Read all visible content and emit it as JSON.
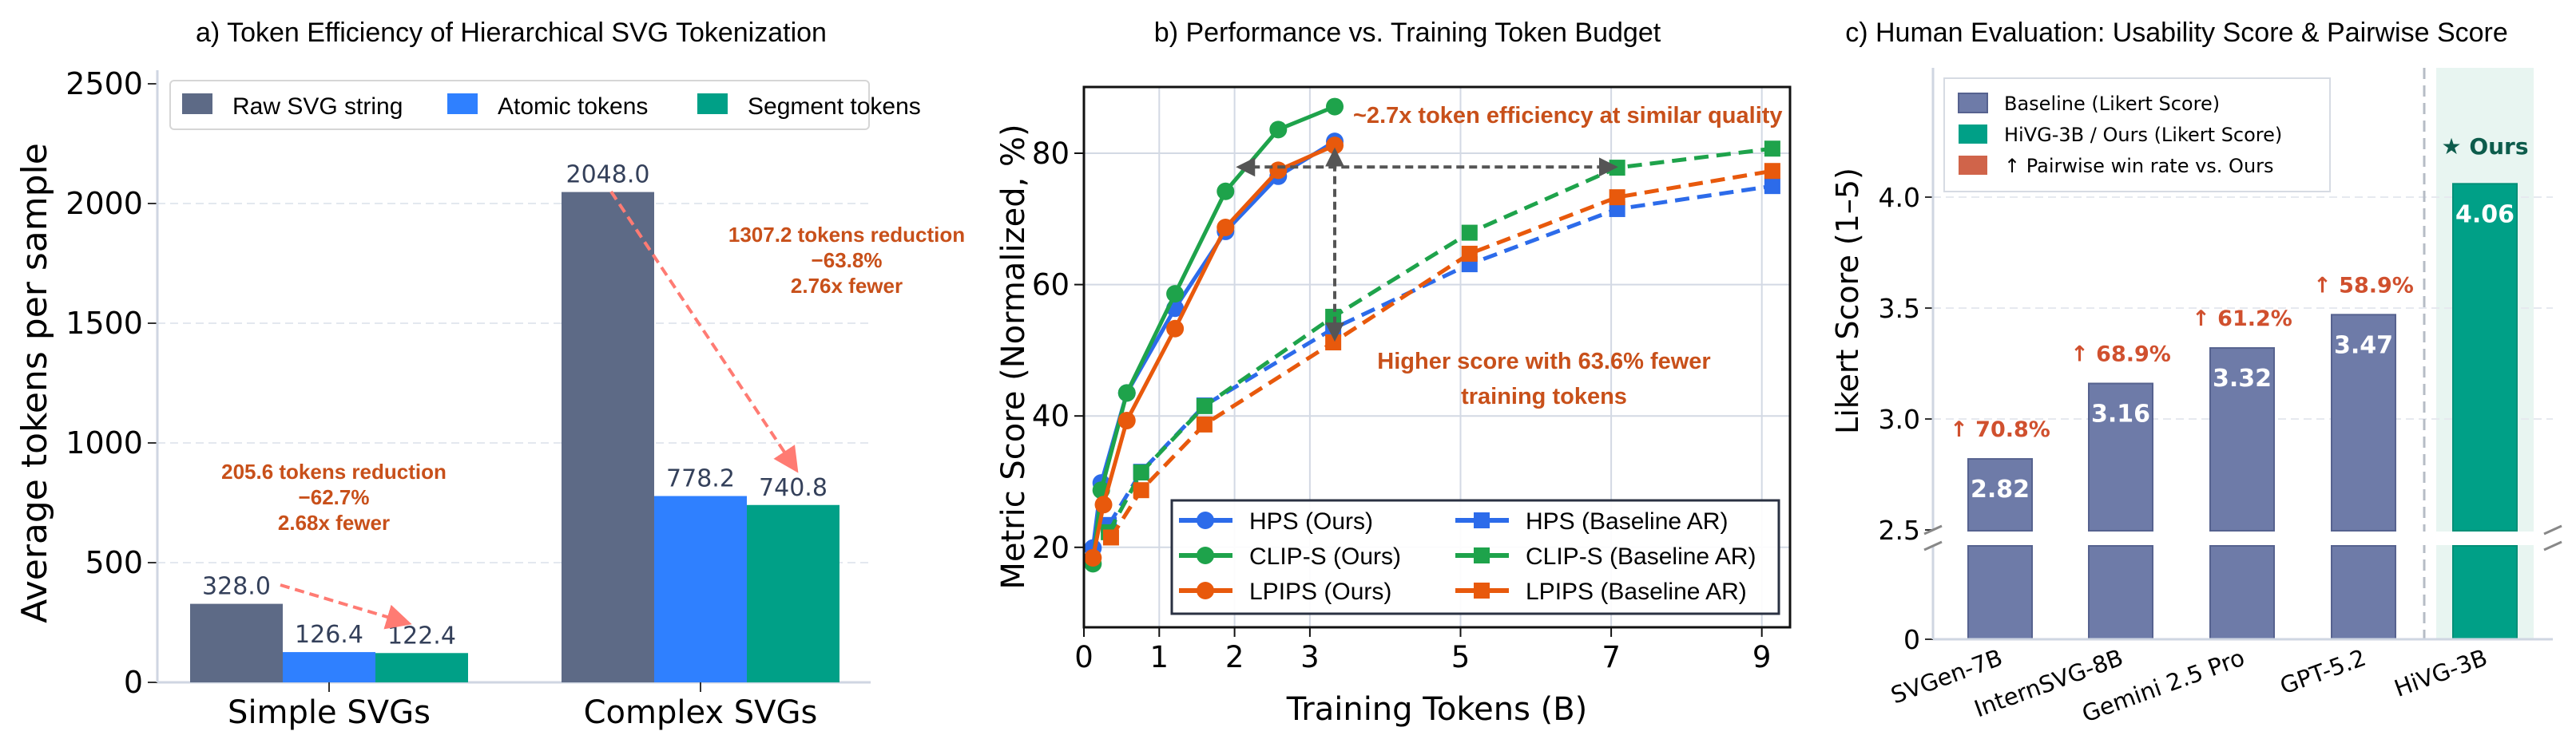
{
  "chart_data": [
    {
      "type": "bar",
      "title": "a) Token Efficiency of Hierarchical SVG Tokenization",
      "xlabel": "",
      "ylabel": "Average tokens per sample",
      "ylim": [
        0,
        2500
      ],
      "yticks": [
        "0",
        "500",
        "1000",
        "1500",
        "2000",
        "2500"
      ],
      "grid": "horizontal dashed",
      "legend_position": "top",
      "categories": [
        "Simple SVGs",
        "Complex SVGs"
      ],
      "series": [
        {
          "name": "Raw SVG string",
          "color": "#5d6a86",
          "values": [
            328.0,
            2048.0
          ],
          "labels": [
            "328.0",
            "2048.0"
          ]
        },
        {
          "name": "Atomic tokens",
          "color": "#2f80ff",
          "values": [
            126.4,
            778.2
          ],
          "labels": [
            "126.4",
            "778.2"
          ]
        },
        {
          "name": "Segment tokens",
          "color": "#00a087",
          "values": [
            122.4,
            740.8
          ],
          "labels": [
            "122.4",
            "740.8"
          ]
        }
      ],
      "annotations": [
        {
          "lines": [
            "205.6 tokens reduction",
            "−62.7%",
            "2.68x fewer"
          ],
          "color": "#c8501a"
        },
        {
          "lines": [
            "1307.2 tokens reduction",
            "−63.8%",
            "2.76x fewer"
          ],
          "color": "#c8501a"
        }
      ],
      "arrow_color": "#ff7b73"
    },
    {
      "type": "line",
      "title": "b) Performance vs. Training Token Budget",
      "xlabel": "Training Tokens (B)",
      "ylabel": "Metric Score (Normalized, %)",
      "xlim": [
        0,
        9.3
      ],
      "ylim": [
        8,
        90
      ],
      "xticks": [
        "0",
        "1",
        "2",
        "3",
        "5",
        "7",
        "9"
      ],
      "yticks": [
        "20",
        "40",
        "60",
        "80"
      ],
      "grid": true,
      "legend_position": "lower-right",
      "series": [
        {
          "name": "HPS (Ours)",
          "color": "#2c6bea",
          "marker": "circle",
          "style": "solid",
          "x": [
            0.12,
            0.23,
            0.57,
            1.21,
            1.88,
            2.58,
            3.33
          ],
          "y": [
            19.9,
            29.8,
            43.5,
            56.4,
            68.1,
            76.5,
            81.8
          ]
        },
        {
          "name": "CLIP-S (Ours)",
          "color": "#1ea34b",
          "marker": "circle",
          "style": "solid",
          "x": [
            0.12,
            0.23,
            0.57,
            1.21,
            1.88,
            2.58,
            3.33
          ],
          "y": [
            17.5,
            28.7,
            43.5,
            58.6,
            74.2,
            83.6,
            87.1
          ]
        },
        {
          "name": "LPIPS (Ours)",
          "color": "#e8590c",
          "marker": "circle",
          "style": "solid",
          "x": [
            0.12,
            0.26,
            0.57,
            1.21,
            1.88,
            2.58,
            3.33
          ],
          "y": [
            18.4,
            26.5,
            39.3,
            53.3,
            68.7,
            77.4,
            81.2
          ]
        },
        {
          "name": "HPS (Baseline AR)",
          "color": "#2c6bea",
          "marker": "square",
          "style": "dashed",
          "x": [
            0.33,
            0.76,
            1.6,
            3.31,
            5.12,
            7.08,
            9.14
          ],
          "y": [
            23.4,
            31.5,
            41.6,
            53.3,
            63.1,
            71.5,
            75.0
          ]
        },
        {
          "name": "CLIP-S (Baseline AR)",
          "color": "#1ea34b",
          "marker": "square",
          "style": "dashed",
          "x": [
            0.33,
            0.76,
            1.6,
            3.31,
            5.12,
            7.08,
            9.14
          ],
          "y": [
            22.3,
            31.4,
            41.5,
            55.1,
            67.9,
            77.8,
            80.7
          ]
        },
        {
          "name": "LPIPS (Baseline AR)",
          "color": "#e8590c",
          "marker": "square",
          "style": "dashed",
          "x": [
            0.36,
            0.76,
            1.6,
            3.31,
            5.12,
            7.08,
            9.14
          ],
          "y": [
            21.5,
            28.7,
            38.7,
            51.2,
            64.7,
            73.3,
            77.3
          ]
        }
      ],
      "annotations": [
        {
          "text": "~2.7x token efficiency at similar quality",
          "color": "#c8501a"
        },
        {
          "lines": [
            "Higher score with 63.6% fewer",
            "training tokens"
          ],
          "color": "#c8501a"
        }
      ],
      "arrows": {
        "horizontal": {
          "x": [
            2.06,
            7.05
          ],
          "y": 77.9
        },
        "vertical": {
          "x": 3.33,
          "y": [
            80.4,
            51.8
          ]
        },
        "color": "#555555"
      }
    },
    {
      "type": "bar",
      "title": "c) Human Evaluation: Usability Score & Pairwise Score",
      "xlabel": "",
      "ylabel": "Likert Score (1–5)",
      "ylim": [
        0,
        4.5
      ],
      "axis_break": [
        0,
        2.5
      ],
      "yticks": [
        "0",
        "2.5",
        "3.0",
        "3.5",
        "4.0"
      ],
      "grid": "horizontal dashed",
      "legend_position": "top-left",
      "categories": [
        "SVGen-7B",
        "InternSVG-8B",
        "Gemini 2.5 Pro",
        "GPT-5.2",
        "HiVG-3B"
      ],
      "values": [
        2.82,
        3.16,
        3.32,
        3.47,
        4.06
      ],
      "value_labels": [
        "2.82",
        "3.16",
        "3.32",
        "3.47",
        "4.06"
      ],
      "pairwise_win_rate": [
        "↑ 70.8%",
        "↑ 68.9%",
        "↑ 61.2%",
        "↑ 58.9%"
      ],
      "ours_label": "★ Ours",
      "legend": [
        {
          "name": "Baseline (Likert Score)",
          "color": "#6e7ba8"
        },
        {
          "name": "HiVG-3B / Ours (Likert Score)",
          "color": "#00a087"
        },
        {
          "name": "↑ Pairwise win rate vs. Ours",
          "color": "#d0644a"
        }
      ],
      "colors": {
        "baseline": "#6e7ba8",
        "ours": "#00a087",
        "pairwise": "#d0502e",
        "ours_label": "#0d5c4c",
        "highlight": "#e8f5f1"
      }
    }
  ]
}
